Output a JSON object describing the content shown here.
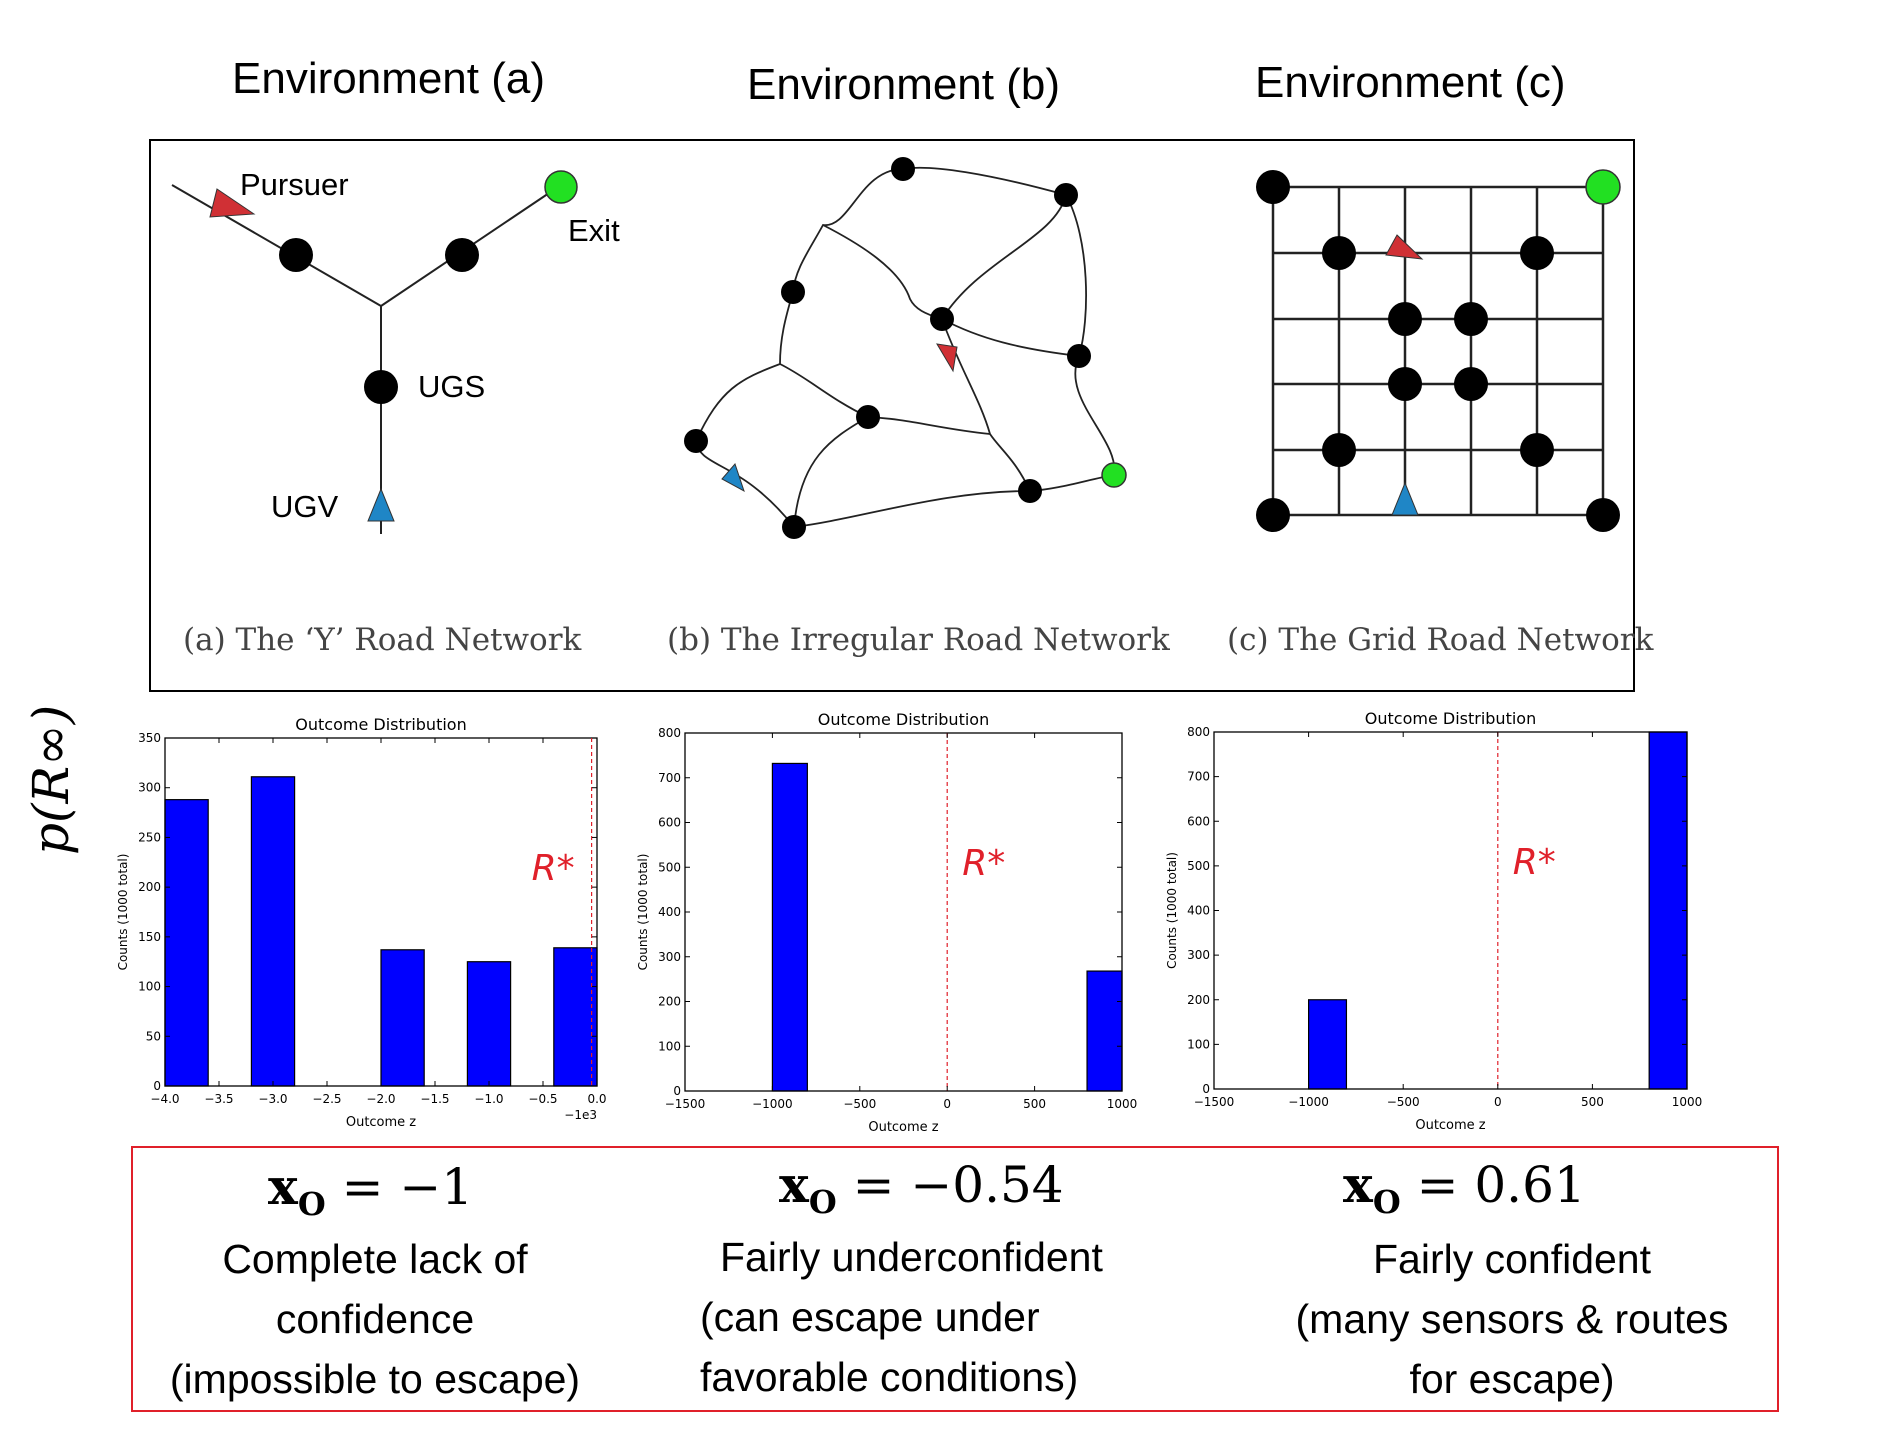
{
  "environments": [
    {
      "title": "Environment (a)",
      "caption": "(a) The ‘Y’ Road Network"
    },
    {
      "title": "Environment (b)",
      "caption": "(b) The Irregular Road Network"
    },
    {
      "title": "Environment (c)",
      "caption": "(c) The Grid Road Network"
    }
  ],
  "labels": {
    "pursuer": "Pursuer",
    "exit": "Exit",
    "ugs": "UGS",
    "ugv": "UGV"
  },
  "y_side_label": "p(R∞)",
  "colors": {
    "node": "#000000",
    "exit": "#22e022",
    "pursuer": "#d03035",
    "ugv": "#1f86c6",
    "bar": "#0000ff",
    "threshold": "#e0202a"
  },
  "chart_data": [
    {
      "type": "bar",
      "title": "Outcome Distribution",
      "xlabel": "Outcome z",
      "ylabel": "Counts (1000 total)",
      "xlim": [
        -4.0,
        0.0
      ],
      "ylim": [
        0,
        350
      ],
      "xticks": [
        "−4.0",
        "−3.5",
        "−3.0",
        "−2.5",
        "−2.0",
        "−1.5",
        "−1.0",
        "−0.5",
        "0.0"
      ],
      "xtick_values": [
        -4.0,
        -3.5,
        -3.0,
        -2.5,
        -2.0,
        -1.5,
        -1.0,
        -0.5,
        0.0
      ],
      "x_scale_note": "−1e3",
      "yticks": [
        0,
        50,
        100,
        150,
        200,
        250,
        300,
        350
      ],
      "bars": [
        {
          "x0": -4.0,
          "x1": -3.6,
          "value": 288
        },
        {
          "x0": -3.6,
          "x1": -3.2,
          "value": 0
        },
        {
          "x0": -3.2,
          "x1": -2.8,
          "value": 311
        },
        {
          "x0": -2.8,
          "x1": -2.4,
          "value": 0
        },
        {
          "x0": -2.4,
          "x1": -2.0,
          "value": 0
        },
        {
          "x0": -2.0,
          "x1": -1.6,
          "value": 137
        },
        {
          "x0": -1.6,
          "x1": -1.2,
          "value": 0
        },
        {
          "x0": -1.2,
          "x1": -0.8,
          "value": 125
        },
        {
          "x0": -0.8,
          "x1": -0.4,
          "value": 0
        },
        {
          "x0": -0.4,
          "x1": 0.0,
          "value": 139
        }
      ],
      "threshold_x": -0.05,
      "threshold_label": "R*"
    },
    {
      "type": "bar",
      "title": "Outcome Distribution",
      "xlabel": "Outcome z",
      "ylabel": "Counts (1000 total)",
      "xlim": [
        -1500,
        1000
      ],
      "ylim": [
        0,
        800
      ],
      "xticks": [
        "−1500",
        "−1000",
        "−500",
        "0",
        "500",
        "1000"
      ],
      "xtick_values": [
        -1500,
        -1000,
        -500,
        0,
        500,
        1000
      ],
      "yticks": [
        0,
        100,
        200,
        300,
        400,
        500,
        600,
        700,
        800
      ],
      "bars": [
        {
          "x0": -1000,
          "x1": -800,
          "value": 732
        },
        {
          "x0": 800,
          "x1": 1000,
          "value": 268
        }
      ],
      "threshold_x": 0,
      "threshold_label": "R*"
    },
    {
      "type": "bar",
      "title": "Outcome Distribution",
      "xlabel": "Outcome z",
      "ylabel": "Counts (1000 total)",
      "xlim": [
        -1500,
        1000
      ],
      "ylim": [
        0,
        800
      ],
      "xticks": [
        "−1500",
        "−1000",
        "−500",
        "0",
        "500",
        "1000"
      ],
      "xtick_values": [
        -1500,
        -1000,
        -500,
        0,
        500,
        1000
      ],
      "yticks": [
        0,
        100,
        200,
        300,
        400,
        500,
        600,
        700,
        800
      ],
      "bars": [
        {
          "x0": -1000,
          "x1": -800,
          "value": 200
        },
        {
          "x0": 800,
          "x1": 1000,
          "value": 800
        }
      ],
      "threshold_x": 0,
      "threshold_label": "R*"
    }
  ],
  "summaries": [
    {
      "formula_value": "−1",
      "lines": [
        "Complete lack of",
        "confidence",
        "(impossible to escape)"
      ]
    },
    {
      "formula_value": "−0.54",
      "lines": [
        "Fairly underconfident",
        "(can escape under",
        "favorable conditions)"
      ]
    },
    {
      "formula_value": "0.61",
      "lines": [
        "Fairly confident",
        "(many sensors & routes",
        "for escape)"
      ]
    }
  ],
  "formula_symbol": "x",
  "formula_subscript": "O"
}
